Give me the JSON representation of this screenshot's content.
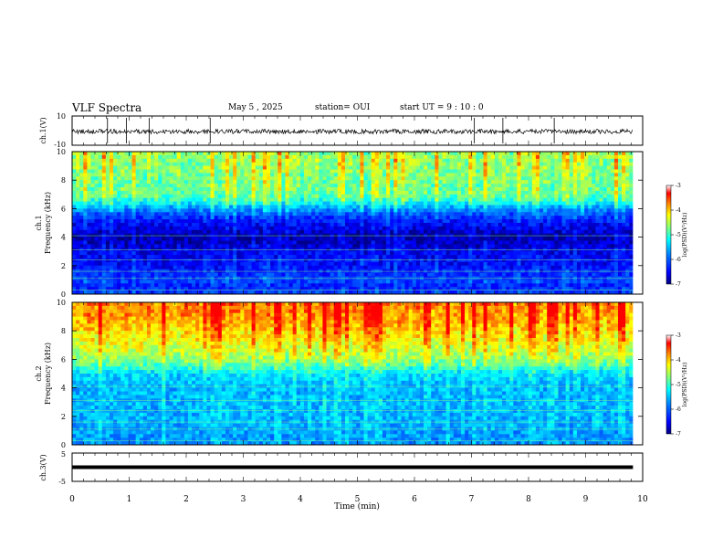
{
  "header": {
    "title": "VLF Spectra",
    "date": "May 5 , 2025",
    "station": "station= OUI",
    "start": "start UT = 9 : 10 : 0"
  },
  "colors": {
    "frame": "#000000",
    "colormap": [
      "#00007f",
      "#0000ff",
      "#007fff",
      "#00ffff",
      "#7fff7f",
      "#ffff00",
      "#ff7f00",
      "#ff0000",
      "#ffffff"
    ]
  },
  "chart_data": [
    {
      "type": "line",
      "ylabel": "ch.1(V)",
      "yticks": [
        "10",
        "-10"
      ],
      "ylim": [
        -10,
        10
      ],
      "xlim": [
        0,
        10
      ],
      "description_series": "dense waveform near 0 V with occasional spikes"
    },
    {
      "type": "heatmap",
      "ylabel_line1": "ch.1",
      "ylabel_line2": "Frequency (kHz)",
      "yticks": [
        "0",
        "2",
        "4",
        "6",
        "8",
        "10"
      ],
      "ylim": [
        0,
        10
      ],
      "xlim": [
        0,
        9.83
      ],
      "colorbar": {
        "label": "log(PSD)(V²/Hz)",
        "ticks": [
          "-3",
          "-4",
          "-5",
          "-6",
          "-7"
        ],
        "range": [
          -7,
          -3
        ]
      },
      "profile": [
        {
          "f": 0.0,
          "v": -6.2
        },
        {
          "f": 0.5,
          "v": -6.4
        },
        {
          "f": 1.0,
          "v": -6.2
        },
        {
          "f": 2.0,
          "v": -6.5
        },
        {
          "f": 3.0,
          "v": -6.6
        },
        {
          "f": 4.0,
          "v": -6.9
        },
        {
          "f": 5.0,
          "v": -6.5
        },
        {
          "f": 5.5,
          "v": -6.2
        },
        {
          "f": 6.0,
          "v": -5.8
        },
        {
          "f": 6.5,
          "v": -5.2
        },
        {
          "f": 7.0,
          "v": -4.9
        },
        {
          "f": 8.0,
          "v": -4.9
        },
        {
          "f": 9.0,
          "v": -4.8
        },
        {
          "f": 10.0,
          "v": -4.8
        }
      ]
    },
    {
      "type": "heatmap",
      "ylabel_line1": "ch.2",
      "ylabel_line2": "Frequency (kHz)",
      "yticks": [
        "0",
        "2",
        "4",
        "6",
        "8",
        "10"
      ],
      "ylim": [
        0,
        10
      ],
      "xlim": [
        0,
        9.83
      ],
      "colorbar": {
        "label": "log(PSD)(V²/Hz)",
        "ticks": [
          "-3",
          "-4",
          "-5",
          "-6",
          "-7"
        ],
        "range": [
          -7,
          -3
        ]
      },
      "profile": [
        {
          "f": 0.0,
          "v": -5.8
        },
        {
          "f": 1.0,
          "v": -5.7
        },
        {
          "f": 2.0,
          "v": -5.6
        },
        {
          "f": 3.0,
          "v": -5.6
        },
        {
          "f": 4.0,
          "v": -5.6
        },
        {
          "f": 5.0,
          "v": -5.4
        },
        {
          "f": 5.5,
          "v": -5.0
        },
        {
          "f": 6.0,
          "v": -4.7
        },
        {
          "f": 7.0,
          "v": -4.4
        },
        {
          "f": 8.0,
          "v": -4.2
        },
        {
          "f": 9.0,
          "v": -4.0
        },
        {
          "f": 10.0,
          "v": -3.9
        }
      ]
    },
    {
      "type": "line",
      "ylabel": "ch.3(V)",
      "yticks": [
        "5",
        "-5"
      ],
      "ylim": [
        -5,
        5
      ],
      "xlim": [
        0,
        10
      ],
      "series": [
        {
          "x": [
            0,
            9.83
          ],
          "y": [
            0,
            0
          ]
        }
      ]
    }
  ],
  "xaxis": {
    "label": "Time (min)",
    "ticks": [
      "0",
      "1",
      "2",
      "3",
      "4",
      "5",
      "6",
      "7",
      "8",
      "9",
      "10"
    ],
    "xlim": [
      0,
      10
    ]
  }
}
